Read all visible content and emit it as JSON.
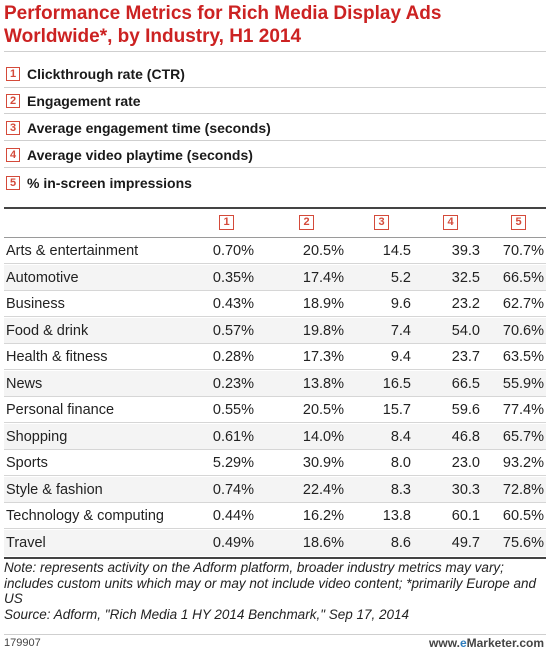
{
  "chart_data": {
    "type": "table",
    "title": "Performance Metrics for Rich Media Display Ads Worldwide*, by Industry, H1 2014",
    "metrics": [
      {
        "key": "1",
        "label": "Clickthrough rate (CTR)"
      },
      {
        "key": "2",
        "label": "Engagement rate"
      },
      {
        "key": "3",
        "label": "Average engagement time (seconds)"
      },
      {
        "key": "4",
        "label": "Average video playtime (seconds)"
      },
      {
        "key": "5",
        "label": "% in-screen impressions"
      }
    ],
    "columns": [
      "1",
      "2",
      "3",
      "4",
      "5"
    ],
    "rows": [
      {
        "industry": "Arts & entertainment",
        "values": [
          "0.70%",
          "20.5%",
          "14.5",
          "39.3",
          "70.7%"
        ]
      },
      {
        "industry": "Automotive",
        "values": [
          "0.35%",
          "17.4%",
          "5.2",
          "32.5",
          "66.5%"
        ]
      },
      {
        "industry": "Business",
        "values": [
          "0.43%",
          "18.9%",
          "9.6",
          "23.2",
          "62.7%"
        ]
      },
      {
        "industry": "Food & drink",
        "values": [
          "0.57%",
          "19.8%",
          "7.4",
          "54.0",
          "70.6%"
        ]
      },
      {
        "industry": "Health & fitness",
        "values": [
          "0.28%",
          "17.3%",
          "9.4",
          "23.7",
          "63.5%"
        ]
      },
      {
        "industry": "News",
        "values": [
          "0.23%",
          "13.8%",
          "16.5",
          "66.5",
          "55.9%"
        ]
      },
      {
        "industry": "Personal finance",
        "values": [
          "0.55%",
          "20.5%",
          "15.7",
          "59.6",
          "77.4%"
        ]
      },
      {
        "industry": "Shopping",
        "values": [
          "0.61%",
          "14.0%",
          "8.4",
          "46.8",
          "65.7%"
        ]
      },
      {
        "industry": "Sports",
        "values": [
          "5.29%",
          "30.9%",
          "8.0",
          "23.0",
          "93.2%"
        ]
      },
      {
        "industry": "Style & fashion",
        "values": [
          "0.74%",
          "22.4%",
          "8.3",
          "30.3",
          "72.8%"
        ]
      },
      {
        "industry": "Technology & computing",
        "values": [
          "0.44%",
          "16.2%",
          "13.8",
          "60.1",
          "60.5%"
        ]
      },
      {
        "industry": "Travel",
        "values": [
          "0.49%",
          "18.6%",
          "8.6",
          "49.7",
          "75.6%"
        ]
      }
    ]
  },
  "note": "Note: represents activity on the Adform platform, broader industry metrics may vary; includes custom units which may or may not include video content; *primarily Europe and US",
  "source": "Source: Adform, \"Rich Media 1 HY 2014 Benchmark,\" Sep 17, 2014",
  "footer": {
    "chart_id": "179907",
    "brand_prefix": "www.",
    "brand_e": "e",
    "brand_suffix": "Marketer.com"
  },
  "colors": {
    "title": "#cc2222",
    "key_border": "#d44a3a",
    "brand_e": "#2e7dbd"
  }
}
